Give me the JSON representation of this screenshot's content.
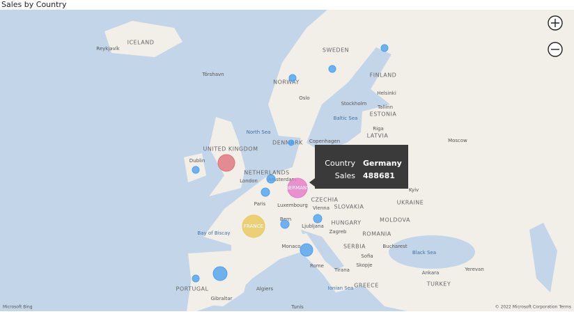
{
  "title": "Sales by Country",
  "map": {
    "bubbles": [
      {
        "sales": 359000,
        "color": "#e0707a"
      },
      {
        "name": "GERMANY",
        "sales": 488681,
        "color": "#e57bc6"
      },
      {
        "name": "FRANCE",
        "sales": 638000,
        "color": "#e8c85a"
      },
      {
        "sales": 62000,
        "color": "#4da1f0"
      },
      {
        "sales": 90000,
        "color": "#4da1f0"
      },
      {
        "sales": 90000,
        "color": "#4da1f0"
      },
      {
        "sales": 90000,
        "color": "#4da1f0"
      },
      {
        "sales": 90000,
        "color": "#4da1f0"
      },
      {
        "sales": 202000,
        "color": "#4da1f0"
      },
      {
        "sales": 249000,
        "color": "#4da1f0"
      },
      {
        "sales": 62000,
        "color": "#4da1f0"
      },
      {
        "sales": 62000,
        "color": "#4da1f0"
      },
      {
        "sales": 62000,
        "color": "#4da1f0"
      },
      {
        "sales": 62000,
        "color": "#4da1f0"
      },
      {
        "sales": 40000,
        "color": "#4da1f0"
      }
    ],
    "labels": [
      "ICELAND",
      "Reykjavík",
      "Tórshavn",
      "NORWAY",
      "SWEDEN",
      "FINLAND",
      "Oslo",
      "Stockholm",
      "Helsinki",
      "Tallinn",
      "ESTONIA",
      "LATVIA",
      "Riga",
      "Baltic Sea",
      "North Sea",
      "DENMARK",
      "Copenhagen",
      "UNITED KINGDOM",
      "Dublin",
      "London",
      "NETHERLANDS",
      "Amsterdam",
      "Paris",
      "Luxembourg",
      "CZECHIA",
      "Vienna",
      "SLOVAKIA",
      "HUNGARY",
      "Bern",
      "Ljubljana",
      "Zagreb",
      "ROMANIA",
      "MOLDOVA",
      "Bucharest",
      "Black Sea",
      "SERBIA",
      "Sofia",
      "Skopje",
      "Tirana",
      "Rome",
      "GREECE",
      "Ankara",
      "TURKEY",
      "Yerevan",
      "Moscow",
      "UKRAINE",
      "Kyiv",
      "Bay of Biscay",
      "Monaco",
      "PORTUGAL",
      "Gibraltar",
      "Algiers",
      "Tunis",
      "Ionian Sea"
    ],
    "attribution": "© 2022 Microsoft Corporation  Terms",
    "provider": "Microsoft Bing"
  },
  "tooltip": {
    "country_label": "Country",
    "country": "Germany",
    "sales_label": "Sales",
    "sales": 488681
  }
}
